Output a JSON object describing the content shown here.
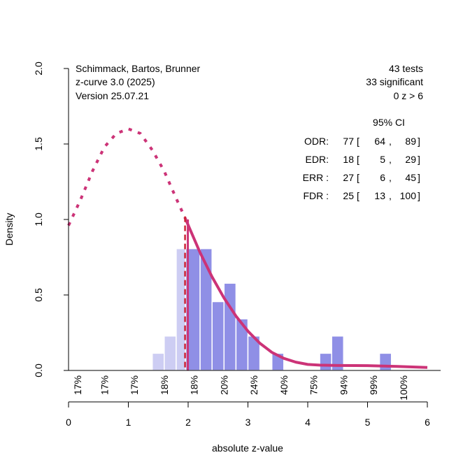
{
  "chart_data": {
    "type": "histogram",
    "title": "",
    "xlabel": "absolute z-value",
    "ylabel": "Density",
    "xlim": [
      0,
      6
    ],
    "ylim": [
      0,
      2
    ],
    "x_ticks": [
      "0",
      "1",
      "2",
      "3",
      "4",
      "5",
      "6"
    ],
    "y_ticks": [
      "0.0",
      "0.5",
      "1.0",
      "1.5",
      "2.0"
    ],
    "grid": false,
    "info_left": [
      "Schimmack, Bartos, Brunner",
      "z-curve 3.0 (2025)",
      "Version 25.07.21"
    ],
    "info_right": [
      "43 tests",
      "33 significant",
      "0 z > 6"
    ],
    "ci_table": {
      "header": "95% CI",
      "rows": [
        {
          "label": "ODR:",
          "estimate": "77",
          "lower": "64",
          "upper": "89"
        },
        {
          "label": "EDR:",
          "estimate": "18",
          "lower": "5",
          "upper": "29"
        },
        {
          "label": "ERR :",
          "estimate": "27",
          "lower": "6",
          "upper": "45"
        },
        {
          "label": "FDR :",
          "estimate": "25",
          "lower": "13",
          "upper": "100"
        }
      ]
    },
    "power_labels": {
      "x": [
        0.15,
        0.6,
        1.1,
        1.6,
        2.1,
        2.6,
        3.1,
        3.6,
        4.1,
        4.6,
        5.1,
        5.6
      ],
      "labels": [
        "17%",
        "17%",
        "17%",
        "18%",
        "18%",
        "20%",
        "24%",
        "40%",
        "75%",
        "94%",
        "99%",
        "100%"
      ]
    },
    "bars": [
      {
        "x0": 1.4,
        "x1": 1.6,
        "density": 0.114,
        "significant": false
      },
      {
        "x0": 1.6,
        "x1": 1.8,
        "density": 0.228,
        "significant": false
      },
      {
        "x0": 1.8,
        "x1": 1.96,
        "density": 0.807,
        "significant": false
      },
      {
        "x0": 1.96,
        "x1": 2.2,
        "density": 0.807,
        "significant": true
      },
      {
        "x0": 2.2,
        "x1": 2.4,
        "density": 0.807,
        "significant": true
      },
      {
        "x0": 2.4,
        "x1": 2.6,
        "density": 0.456,
        "significant": true
      },
      {
        "x0": 2.6,
        "x1": 2.8,
        "density": 0.578,
        "significant": true
      },
      {
        "x0": 2.8,
        "x1": 3.0,
        "density": 0.342,
        "significant": true
      },
      {
        "x0": 3.0,
        "x1": 3.2,
        "density": 0.228,
        "significant": true
      },
      {
        "x0": 3.4,
        "x1": 3.6,
        "density": 0.114,
        "significant": true
      },
      {
        "x0": 4.2,
        "x1": 4.4,
        "density": 0.114,
        "significant": true
      },
      {
        "x0": 4.4,
        "x1": 4.6,
        "density": 0.228,
        "significant": true
      },
      {
        "x0": 5.2,
        "x1": 5.4,
        "density": 0.114,
        "significant": true
      }
    ],
    "series": [
      {
        "name": "fitted density (below criterion, dotted)",
        "style": "dotted",
        "x": [
          0,
          0.2,
          0.4,
          0.6,
          0.8,
          1.0,
          1.2,
          1.4,
          1.6,
          1.8,
          1.96
        ],
        "y": [
          0.96,
          1.13,
          1.32,
          1.48,
          1.57,
          1.6,
          1.57,
          1.46,
          1.32,
          1.14,
          1.0
        ]
      },
      {
        "name": "fitted density (above criterion, solid)",
        "style": "solid",
        "x": [
          1.96,
          2.2,
          2.4,
          2.6,
          2.8,
          3.0,
          3.2,
          3.4,
          3.6,
          3.8,
          4.0,
          4.2,
          4.5,
          5.0,
          5.5,
          6.0
        ],
        "y": [
          1.0,
          0.78,
          0.62,
          0.48,
          0.36,
          0.26,
          0.18,
          0.12,
          0.08,
          0.055,
          0.04,
          0.035,
          0.033,
          0.032,
          0.027,
          0.02
        ]
      }
    ],
    "criterion_line": {
      "x": 1.96,
      "style": "dashed"
    },
    "colors": {
      "bar_significant": "#8f8fe6",
      "bar_nonsignificant": "#cdcdf3",
      "curve": "#cc3377",
      "criterion": "#cc2233"
    }
  }
}
